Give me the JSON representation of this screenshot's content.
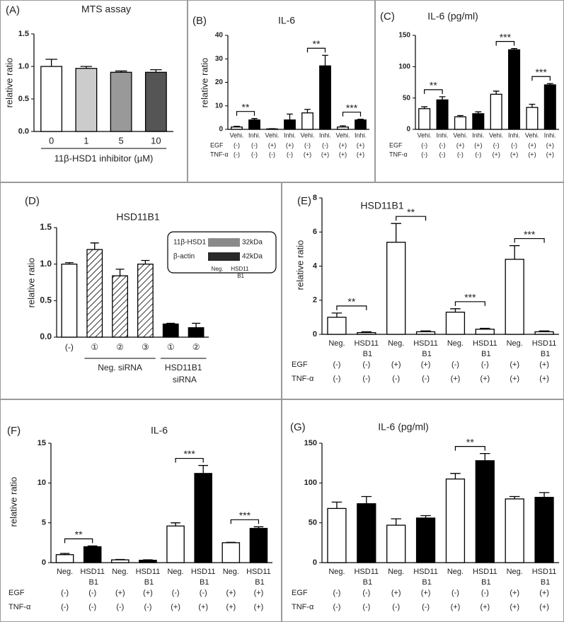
{
  "chart_data": [
    {
      "type": "bar",
      "panel": "(A)",
      "title": "MTS assay",
      "ylabel": "relative ratio",
      "xlabel": "11β-HSD1 inhibitor (µM)",
      "categories": [
        "0",
        "1",
        "5",
        "10"
      ],
      "values": [
        1.0,
        0.97,
        0.91,
        0.91
      ],
      "errors": [
        0.11,
        0.03,
        0.02,
        0.04
      ],
      "fills": [
        "#ffffff",
        "#cccccc",
        "#999999",
        "#555555"
      ],
      "ylim": [
        0,
        1.5
      ],
      "yticks": [
        {
          "value": 0,
          "label": "0.0"
        },
        0.5,
        {
          "value": 1,
          "label": "1.0"
        },
        1.5
      ]
    },
    {
      "type": "bar",
      "panel": "(B)",
      "title": "IL-6",
      "ylabel": "relative ratio",
      "categories": [
        "Vehi.",
        "Inhi.",
        "Vehi.",
        "Inhi.",
        "Vehi.",
        "Inhi.",
        "Vehi.",
        "Inhi."
      ],
      "values": [
        1.0,
        4.0,
        0.2,
        4.0,
        7.0,
        27.0,
        1.0,
        4.0
      ],
      "errors": [
        0.3,
        0.6,
        0.1,
        2.5,
        1.5,
        4.5,
        0.5,
        0.3
      ],
      "fills": [
        "#ffffff",
        "#000000",
        "#ffffff",
        "#000000",
        "#ffffff",
        "#000000",
        "#ffffff",
        "#000000"
      ],
      "ylim": [
        0,
        40
      ],
      "yticks": [
        0,
        10,
        20,
        30,
        40
      ],
      "conditions": [
        {
          "label": "EGF",
          "values": [
            "(-)",
            "(-)",
            "(+)",
            "(+)",
            "(-)",
            "(-)",
            "(+)",
            "(+)"
          ]
        },
        {
          "label": "TNF-α",
          "values": [
            "(-)",
            "(-)",
            "(-)",
            "(-)",
            "(+)",
            "(+)",
            "(+)",
            "(+)"
          ]
        }
      ],
      "brackets": [
        {
          "from": 0,
          "to": 1,
          "label": "**"
        },
        {
          "from": 4,
          "to": 5,
          "label": "**"
        },
        {
          "from": 6,
          "to": 7,
          "label": "***"
        }
      ]
    },
    {
      "type": "bar",
      "panel": "(C)",
      "title": "IL-6 (pg/ml)",
      "categories": [
        "Vehi.",
        "Inhi.",
        "Vehi.",
        "Inhi.",
        "Vehi.",
        "Inhi.",
        "Vehi.",
        "Inhi."
      ],
      "values": [
        33,
        47,
        20,
        25,
        56,
        127,
        35,
        71
      ],
      "errors": [
        3,
        5,
        2,
        3,
        5,
        2,
        5,
        2
      ],
      "fills": [
        "#ffffff",
        "#000000",
        "#ffffff",
        "#000000",
        "#ffffff",
        "#000000",
        "#ffffff",
        "#000000"
      ],
      "ylim": [
        0,
        150
      ],
      "yticks": [
        0,
        50,
        100,
        150
      ],
      "conditions": [
        {
          "label": "EGF",
          "values": [
            "(-)",
            "(-)",
            "(+)",
            "(+)",
            "(-)",
            "(-)",
            "(+)",
            "(+)"
          ]
        },
        {
          "label": "TNF-α",
          "values": [
            "(-)",
            "(-)",
            "(-)",
            "(-)",
            "(+)",
            "(+)",
            "(+)",
            "(+)"
          ]
        }
      ],
      "brackets": [
        {
          "from": 0,
          "to": 1,
          "label": "**"
        },
        {
          "from": 4,
          "to": 5,
          "label": "***"
        },
        {
          "from": 6,
          "to": 7,
          "label": "***"
        }
      ]
    },
    {
      "type": "bar",
      "panel": "(D)",
      "title": "HSD11B1",
      "ylabel": "relative ratio",
      "categories": [
        "(-)",
        "①",
        "②",
        "③",
        "①",
        "②"
      ],
      "values": [
        1.0,
        1.2,
        0.84,
        1.0,
        0.18,
        0.13
      ],
      "errors": [
        0.02,
        0.09,
        0.09,
        0.05,
        0.01,
        0.06
      ],
      "fills": [
        "#ffffff",
        "hatch",
        "hatch",
        "hatch",
        "#000000",
        "#000000"
      ],
      "ylim": [
        0,
        1.5
      ],
      "yticks": [
        {
          "value": 0,
          "label": "0.0"
        },
        0.5,
        {
          "value": 1,
          "label": "1.0"
        },
        1.5
      ],
      "groups": [
        {
          "label": "Neg. siRNA",
          "from": 1,
          "to": 3
        },
        {
          "label": "HSD11B1 siRNA",
          "from": 4,
          "to": 5
        }
      ],
      "inset": {
        "rows": [
          {
            "label": "11β-HSD1",
            "size": "32kDa"
          },
          {
            "label": "β-actin",
            "size": "42kDa"
          }
        ],
        "lanes": [
          "Neg.",
          "HSD11 B1"
        ]
      }
    },
    {
      "type": "bar",
      "panel": "(E)",
      "title": "HSD11B1",
      "ylabel": "relative ratio",
      "categories": [
        "Neg.",
        "HSD11 B1",
        "Neg.",
        "HSD11 B1",
        "Neg.",
        "HSD11 B1",
        "Neg.",
        "HSD11 B1"
      ],
      "values": [
        1.0,
        0.1,
        5.4,
        0.15,
        1.3,
        0.3,
        4.4,
        0.15
      ],
      "errors": [
        0.25,
        0.05,
        1.1,
        0.05,
        0.2,
        0.05,
        0.8,
        0.05
      ],
      "fills": [
        "#ffffff",
        "#ffffff",
        "#ffffff",
        "#ffffff",
        "#ffffff",
        "#ffffff",
        "#ffffff",
        "#ffffff"
      ],
      "ylim": [
        0,
        8
      ],
      "yticks": [
        0,
        2,
        4,
        6,
        8
      ],
      "conditions": [
        {
          "label": "EGF",
          "values": [
            "(-)",
            "(-)",
            "(+)",
            "(+)",
            "(-)",
            "(-)",
            "(+)",
            "(+)"
          ]
        },
        {
          "label": "TNF-α",
          "values": [
            "(-)",
            "(-)",
            "(-)",
            "(-)",
            "(+)",
            "(+)",
            "(+)",
            "(+)"
          ]
        }
      ],
      "brackets": [
        {
          "from": 0,
          "to": 1,
          "label": "**"
        },
        {
          "from": 2,
          "to": 3,
          "label": "**"
        },
        {
          "from": 4,
          "to": 5,
          "label": "***"
        },
        {
          "from": 6,
          "to": 7,
          "label": "***"
        }
      ]
    },
    {
      "type": "bar",
      "panel": "(F)",
      "title": "IL-6",
      "ylabel": "relative ratio",
      "categories": [
        "Neg.",
        "HSD11 B1",
        "Neg.",
        "HSD11 B1",
        "Neg.",
        "HSD11 B1",
        "Neg.",
        "HSD11 B1"
      ],
      "values": [
        1.0,
        2.0,
        0.35,
        0.3,
        4.6,
        11.2,
        2.5,
        4.3
      ],
      "errors": [
        0.15,
        0.1,
        0.05,
        0.05,
        0.4,
        1.0,
        0.05,
        0.2
      ],
      "fills": [
        "#ffffff",
        "#000000",
        "#ffffff",
        "#000000",
        "#ffffff",
        "#000000",
        "#ffffff",
        "#000000"
      ],
      "ylim": [
        0,
        15
      ],
      "yticks": [
        0,
        5,
        10,
        15
      ],
      "conditions": [
        {
          "label": "EGF",
          "values": [
            "(-)",
            "(-)",
            "(+)",
            "(+)",
            "(-)",
            "(-)",
            "(+)",
            "(+)"
          ]
        },
        {
          "label": "TNF-α",
          "values": [
            "(-)",
            "(-)",
            "(-)",
            "(-)",
            "(+)",
            "(+)",
            "(+)",
            "(+)"
          ]
        }
      ],
      "brackets": [
        {
          "from": 0,
          "to": 1,
          "label": "**"
        },
        {
          "from": 4,
          "to": 5,
          "label": "***"
        },
        {
          "from": 6,
          "to": 7,
          "label": "***"
        }
      ]
    },
    {
      "type": "bar",
      "panel": "(G)",
      "title": "IL-6 (pg/ml)",
      "categories": [
        "Neg.",
        "HSD11 B1",
        "Neg.",
        "HSD11 B1",
        "Neg.",
        "HSD11 B1",
        "Neg.",
        "HSD11 B1"
      ],
      "values": [
        68,
        74,
        47,
        56,
        105,
        128,
        80,
        82
      ],
      "errors": [
        8,
        9,
        8,
        3,
        7,
        9,
        3,
        6
      ],
      "fills": [
        "#ffffff",
        "#000000",
        "#ffffff",
        "#000000",
        "#ffffff",
        "#000000",
        "#ffffff",
        "#000000"
      ],
      "ylim": [
        0,
        150
      ],
      "yticks": [
        0,
        50,
        100,
        150
      ],
      "conditions": [
        {
          "label": "EGF",
          "values": [
            "(-)",
            "(-)",
            "(+)",
            "(+)",
            "(-)",
            "(-)",
            "(+)",
            "(+)"
          ]
        },
        {
          "label": "TNF-α",
          "values": [
            "(-)",
            "(-)",
            "(-)",
            "(-)",
            "(+)",
            "(+)",
            "(+)",
            "(+)"
          ]
        }
      ],
      "brackets": [
        {
          "from": 4,
          "to": 5,
          "label": "**"
        }
      ]
    }
  ]
}
